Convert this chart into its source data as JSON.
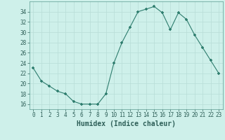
{
  "x": [
    0,
    1,
    2,
    3,
    4,
    5,
    6,
    7,
    8,
    9,
    10,
    11,
    12,
    13,
    14,
    15,
    16,
    17,
    18,
    19,
    20,
    21,
    22,
    23
  ],
  "y": [
    23,
    20.5,
    19.5,
    18.5,
    18,
    16.5,
    16,
    16,
    16,
    18,
    24,
    28,
    31,
    34,
    34.5,
    35,
    33.8,
    30.5,
    33.8,
    32.5,
    29.5,
    27,
    24.5,
    22
  ],
  "line_color": "#2e7d6e",
  "marker_color": "#2e7d6e",
  "bg_color": "#cef0ea",
  "grid_color": "#b8ddd7",
  "xlabel": "Humidex (Indice chaleur)",
  "ylim": [
    15,
    36
  ],
  "xlim": [
    -0.5,
    23.5
  ],
  "yticks": [
    16,
    18,
    20,
    22,
    24,
    26,
    28,
    30,
    32,
    34
  ],
  "xticks": [
    0,
    1,
    2,
    3,
    4,
    5,
    6,
    7,
    8,
    9,
    10,
    11,
    12,
    13,
    14,
    15,
    16,
    17,
    18,
    19,
    20,
    21,
    22,
    23
  ],
  "tick_fontsize": 5.5,
  "label_fontsize": 7
}
